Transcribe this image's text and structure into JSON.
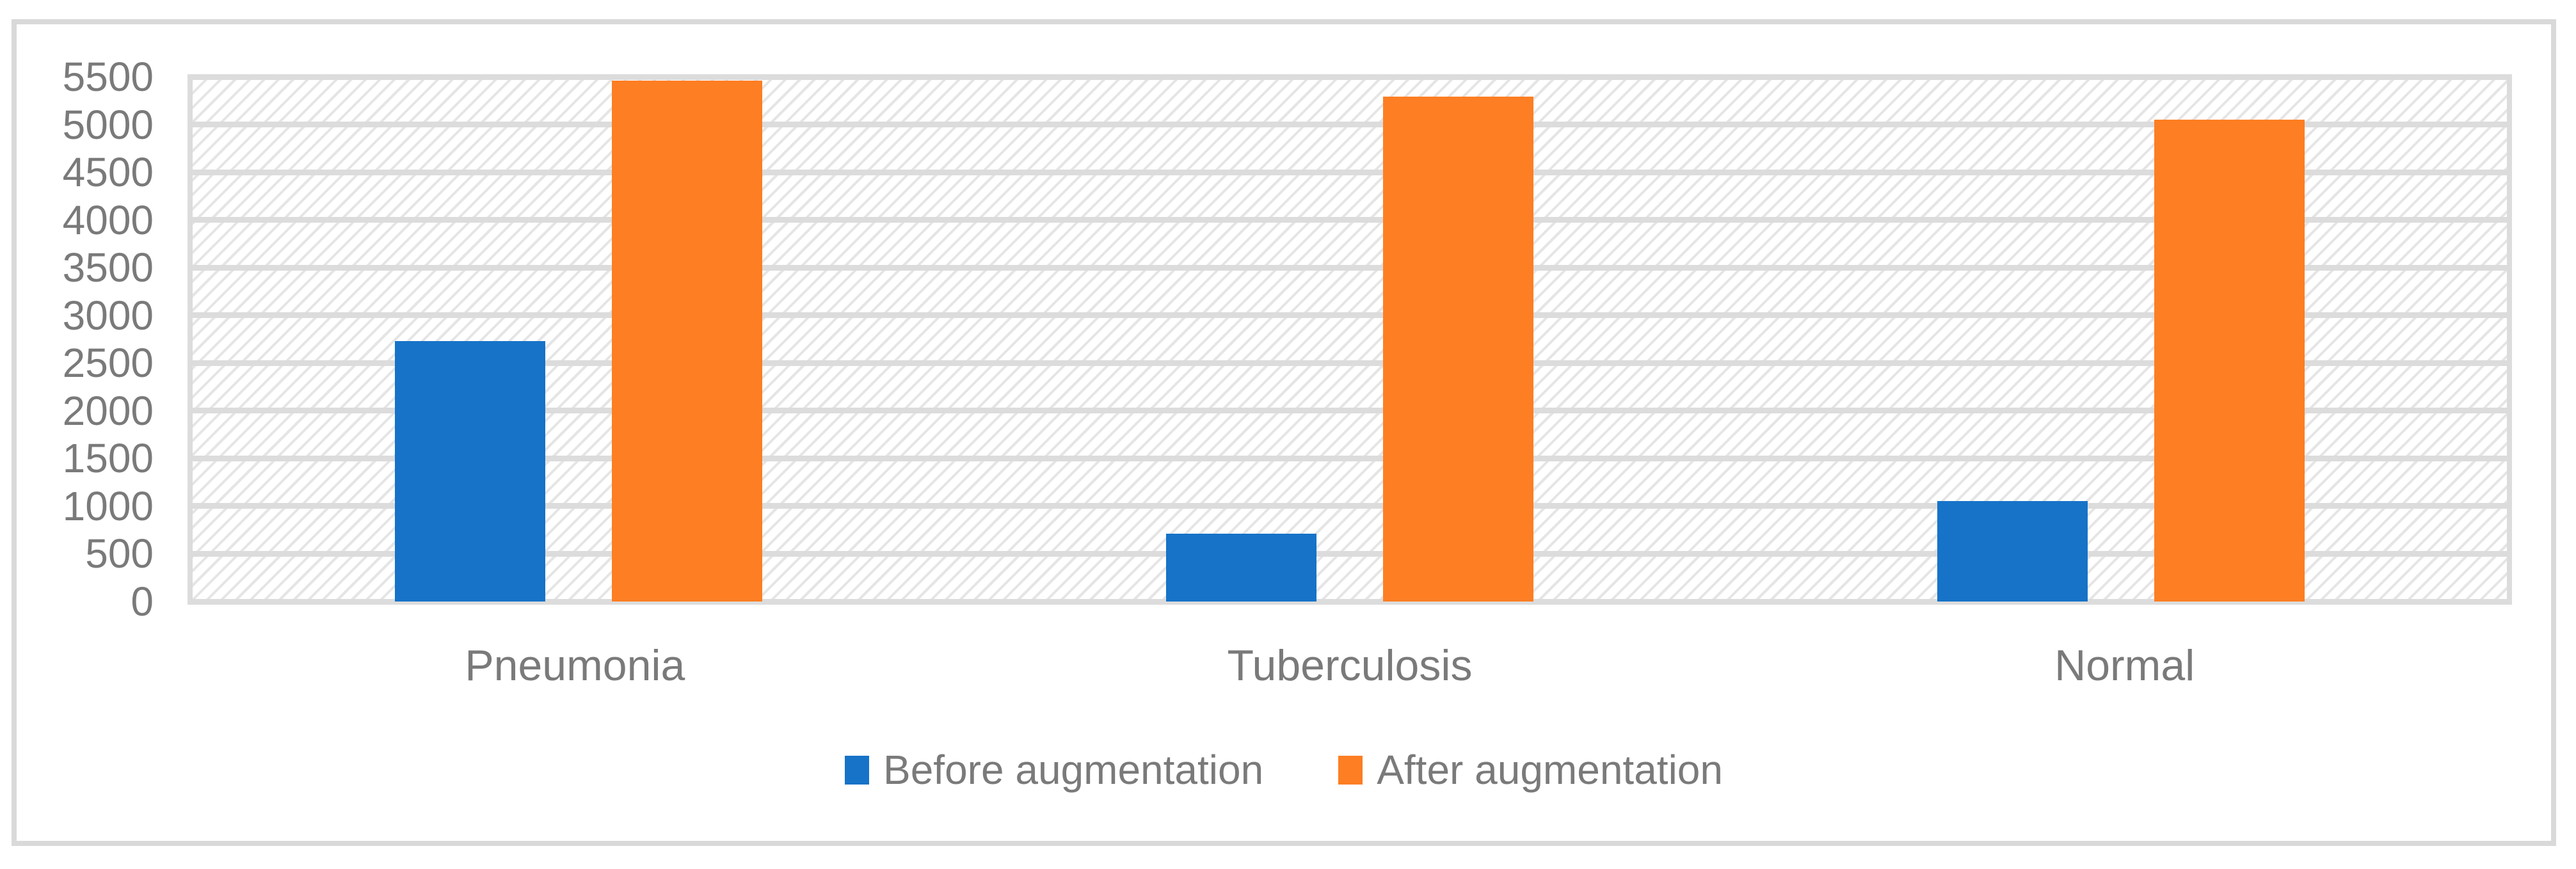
{
  "figure": {
    "background": "#ffffff",
    "border_color": "#d9d9d9",
    "text_color": "#7a7a7a",
    "gridline_color": "#dcdcdc",
    "pattern_color": "#e5e5e5"
  },
  "chart_data": {
    "type": "bar",
    "title": "",
    "xlabel": "",
    "ylabel": "",
    "categories": [
      "Pneumonia",
      "Tuberculosis",
      "Normal"
    ],
    "series": [
      {
        "name": "Before augmentation",
        "color": "#1673c8",
        "values": [
          2730,
          710,
          1050
        ]
      },
      {
        "name": "After augmentation",
        "color": "#fd7e23",
        "values": [
          5460,
          5290,
          5050
        ]
      }
    ],
    "ylim": [
      0,
      5500
    ],
    "ytick_step": 500,
    "yticks": [
      5500,
      5000,
      4500,
      4000,
      3500,
      3000,
      2500,
      2000,
      1500,
      1000,
      500,
      0
    ],
    "grid": true,
    "plot_background_pattern": "light-downward-diagonal",
    "legend_position": "bottom-center",
    "legend": [
      "Before augmentation",
      "After augmentation"
    ]
  }
}
